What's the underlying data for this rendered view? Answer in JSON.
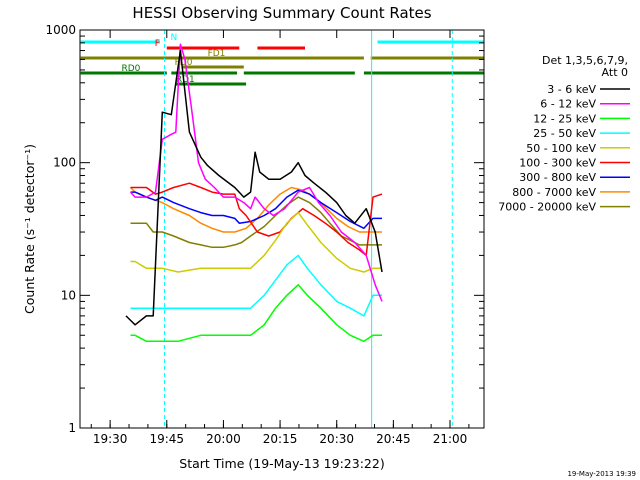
{
  "chart_data": {
    "type": "line",
    "title": "HESSI Observing Summary Count Rates",
    "xlabel": "Start Time (19-May-13 19:23:22)",
    "ylabel": "Count Rate (s⁻¹ detector⁻¹)",
    "x_range_minutes": [
      19.367,
      21.15
    ],
    "ylim": [
      1,
      1000
    ],
    "yscale": "log",
    "x_ticks": [
      {
        "t": 19.5,
        "label": "19:30"
      },
      {
        "t": 19.75,
        "label": "19:45"
      },
      {
        "t": 20.0,
        "label": "20:00"
      },
      {
        "t": 20.25,
        "label": "20:15"
      },
      {
        "t": 20.5,
        "label": "20:30"
      },
      {
        "t": 20.75,
        "label": "20:45"
      },
      {
        "t": 21.0,
        "label": "21:00"
      }
    ],
    "y_ticks": [
      {
        "v": 1,
        "label": "1"
      },
      {
        "v": 10,
        "label": "10"
      },
      {
        "v": 100,
        "label": "100"
      },
      {
        "v": 1000,
        "label": "1000"
      }
    ],
    "legend_title": [
      "Det 1,3,5,6,7,9,",
      "Att 0"
    ],
    "legend_position": "right",
    "series": [
      {
        "name": "3 - 6 keV",
        "color": "#000000",
        "x": [
          19.57,
          19.61,
          19.66,
          19.69,
          19.73,
          19.77,
          19.81,
          19.85,
          19.9,
          19.93,
          19.98,
          20.05,
          20.09,
          20.12,
          20.14,
          20.16,
          20.2,
          20.25,
          20.3,
          20.33,
          20.36,
          20.4,
          20.45,
          20.5,
          20.54,
          20.58,
          20.63,
          20.67,
          20.7
        ],
        "y": [
          7,
          6,
          7,
          7,
          240,
          230,
          700,
          170,
          110,
          95,
          80,
          65,
          55,
          60,
          120,
          85,
          75,
          75,
          85,
          100,
          80,
          70,
          60,
          50,
          40,
          35,
          45,
          30,
          15
        ]
      },
      {
        "name": "6 - 12 keV",
        "color": "#ff00ff",
        "x": [
          19.59,
          19.61,
          19.66,
          19.7,
          19.73,
          19.76,
          19.79,
          19.81,
          19.83,
          19.86,
          19.89,
          19.92,
          19.96,
          20.0,
          20.05,
          20.09,
          20.12,
          20.14,
          20.18,
          20.22,
          20.27,
          20.33,
          20.38,
          20.42,
          20.47,
          20.52,
          20.58,
          20.63,
          20.67,
          20.7
        ],
        "y": [
          60,
          55,
          55,
          60,
          150,
          160,
          170,
          780,
          600,
          250,
          100,
          75,
          65,
          55,
          55,
          50,
          45,
          55,
          45,
          40,
          45,
          60,
          65,
          50,
          40,
          30,
          25,
          20,
          12,
          9
        ]
      },
      {
        "name": "12 - 25 keV",
        "color": "#00ff00",
        "x": [
          19.59,
          19.61,
          19.66,
          19.73,
          19.8,
          19.9,
          20.0,
          20.07,
          20.12,
          20.18,
          20.23,
          20.28,
          20.33,
          20.37,
          20.43,
          20.5,
          20.56,
          20.62,
          20.66,
          20.7
        ],
        "y": [
          5,
          5,
          4.5,
          4.5,
          4.5,
          5,
          5,
          5,
          5,
          6,
          8,
          10,
          12,
          10,
          8,
          6,
          5,
          4.5,
          5,
          5
        ]
      },
      {
        "name": "25 - 50 keV",
        "color": "#00ffff",
        "x": [
          19.59,
          19.61,
          19.66,
          19.73,
          19.8,
          19.9,
          20.0,
          20.07,
          20.12,
          20.18,
          20.23,
          20.28,
          20.33,
          20.37,
          20.43,
          20.5,
          20.56,
          20.62,
          20.66,
          20.7
        ],
        "y": [
          8,
          8,
          8,
          8,
          8,
          8,
          8,
          8,
          8,
          10,
          13,
          17,
          20,
          16,
          12,
          9,
          8,
          7,
          10,
          10
        ]
      },
      {
        "name": "50 - 100 keV",
        "color": "#cccc00",
        "x": [
          19.59,
          19.61,
          19.66,
          19.73,
          19.8,
          19.9,
          20.0,
          20.07,
          20.12,
          20.18,
          20.23,
          20.28,
          20.33,
          20.37,
          20.43,
          20.5,
          20.56,
          20.62,
          20.66,
          20.7
        ],
        "y": [
          18,
          18,
          16,
          16,
          15,
          16,
          16,
          16,
          16,
          20,
          26,
          35,
          42,
          34,
          25,
          19,
          16,
          15,
          16,
          16
        ]
      },
      {
        "name": "100 - 300 keV",
        "color": "#ff0000",
        "x": [
          19.59,
          19.61,
          19.66,
          19.7,
          19.73,
          19.78,
          19.85,
          19.9,
          19.95,
          20.0,
          20.05,
          20.07,
          20.1,
          20.15,
          20.2,
          20.25,
          20.3,
          20.35,
          20.4,
          20.45,
          20.5,
          20.55,
          20.6,
          20.63,
          20.66,
          20.7
        ],
        "y": [
          65,
          65,
          65,
          58,
          60,
          65,
          70,
          65,
          60,
          58,
          58,
          45,
          40,
          30,
          28,
          30,
          38,
          45,
          40,
          35,
          30,
          25,
          22,
          20,
          55,
          58
        ]
      },
      {
        "name": "300 - 800 keV",
        "color": "#0000ff",
        "x": [
          19.59,
          19.61,
          19.66,
          19.7,
          19.73,
          19.78,
          19.85,
          19.9,
          19.95,
          20.0,
          20.05,
          20.07,
          20.12,
          20.18,
          20.23,
          20.28,
          20.33,
          20.38,
          20.43,
          20.5,
          20.56,
          20.62,
          20.66,
          20.7
        ],
        "y": [
          60,
          60,
          55,
          52,
          55,
          50,
          45,
          42,
          40,
          40,
          38,
          35,
          36,
          40,
          45,
          55,
          62,
          58,
          50,
          42,
          36,
          32,
          38,
          38
        ]
      },
      {
        "name": "800 - 7000 keV",
        "color": "#ff8800",
        "x": [
          19.59,
          19.61,
          19.66,
          19.7,
          19.73,
          19.78,
          19.85,
          19.9,
          19.95,
          20.0,
          20.05,
          20.1,
          20.15,
          20.2,
          20.25,
          20.3,
          20.35,
          20.4,
          20.45,
          20.5,
          20.55,
          20.6,
          20.66,
          20.7
        ],
        "y": [
          65,
          60,
          55,
          52,
          50,
          45,
          40,
          35,
          32,
          30,
          30,
          32,
          38,
          48,
          58,
          65,
          62,
          55,
          46,
          38,
          33,
          30,
          30,
          30
        ]
      },
      {
        "name": "7000 - 20000 keV",
        "color": "#808000",
        "x": [
          19.59,
          19.61,
          19.66,
          19.69,
          19.73,
          19.78,
          19.85,
          19.9,
          19.95,
          20.0,
          20.05,
          20.08,
          20.12,
          20.18,
          20.23,
          20.28,
          20.33,
          20.38,
          20.43,
          20.47,
          20.52,
          20.56,
          20.6,
          20.65,
          20.7
        ],
        "y": [
          35,
          35,
          35,
          30,
          30,
          28,
          25,
          24,
          23,
          23,
          24,
          25,
          28,
          33,
          40,
          48,
          55,
          50,
          42,
          35,
          28,
          26,
          24,
          24,
          24
        ]
      }
    ],
    "annotations": {
      "flag_bars": [
        {
          "label": "N",
          "color": "#00ffff",
          "segments": [
            [
              19.37,
              19.72
            ],
            [
              20.68,
              21.15
            ]
          ]
        },
        {
          "label": "F",
          "color": "#ff0000",
          "segments": [
            [
              19.75,
              20.07
            ],
            [
              20.15,
              20.36
            ]
          ]
        },
        {
          "label": "FD1",
          "color": "#808000",
          "segments": [
            [
              19.37,
              20.62
            ],
            [
              20.65,
              21.15
            ]
          ]
        },
        {
          "label": "FD0",
          "color": "#808000",
          "segments": [
            [
              19.82,
              20.09
            ]
          ]
        },
        {
          "label": "RD0",
          "color": "#007700",
          "segments": [
            [
              19.37,
              19.75
            ],
            [
              19.77,
              20.06
            ],
            [
              20.09,
              20.58
            ],
            [
              20.62,
              21.15
            ]
          ]
        },
        {
          "label": "RD1",
          "color": "#007700",
          "segments": [
            [
              19.79,
              20.1
            ]
          ]
        }
      ],
      "vlines": [
        {
          "t": 19.74,
          "color": "#00ffff",
          "style": "dashed"
        },
        {
          "t": 20.654,
          "color": "#00ffff",
          "style": "solid"
        },
        {
          "t": 21.01,
          "color": "#00ffff",
          "style": "dashed"
        }
      ]
    },
    "grid": false
  },
  "timestamp": "19-May-2013 19:39"
}
